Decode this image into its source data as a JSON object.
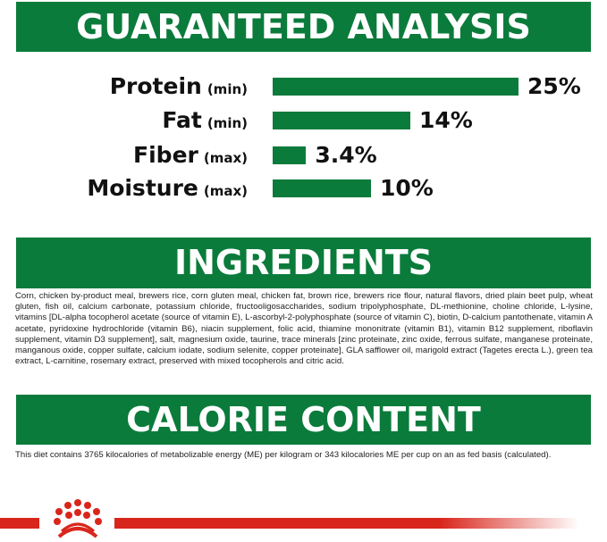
{
  "sections": {
    "analysis_title": "GUARANTEED ANALYSIS",
    "ingredients_title": "INGREDIENTS",
    "calorie_title": "CALORIE CONTENT"
  },
  "analysis": [
    {
      "name": "Protein",
      "qualifier": "(min)",
      "value": 25,
      "label": "25%"
    },
    {
      "name": "Fat",
      "qualifier": "(min)",
      "value": 14,
      "label": "14%"
    },
    {
      "name": "Fiber",
      "qualifier": "(max)",
      "value": 3.4,
      "label": "3.4%"
    },
    {
      "name": "Moisture",
      "qualifier": "(max)",
      "value": 10,
      "label": "10%"
    }
  ],
  "chart_data": {
    "type": "bar",
    "orientation": "horizontal",
    "categories": [
      "Protein (min)",
      "Fat (min)",
      "Fiber (max)",
      "Moisture (max)"
    ],
    "values": [
      25,
      14,
      3.4,
      10
    ],
    "unit": "%"
  },
  "ingredients_text": "Corn, chicken by-product meal, brewers rice, corn gluten meal, chicken fat, brown rice, brewers rice flour, natural flavors, dried plain beet pulp, wheat gluten, fish oil, calcium carbonate, potassium chloride, fructooligosaccharides, sodium tripolyphosphate, DL-methionine, choline chloride, L-lysine, vitamins [DL-alpha tocopherol acetate (source of vitamin E), L-ascorbyl-2-polyphosphate (source of vitamin C), biotin, D-calcium pantothenate, vitamin A acetate, pyridoxine hydrochloride (vitamin B6), niacin supplement, folic acid, thiamine mononitrate (vitamin B1), vitamin B12 supplement, riboflavin supplement, vitamin D3 supplement], salt, magnesium oxide, taurine, trace minerals [zinc proteinate, zinc oxide, ferrous sulfate, manganese proteinate, manganous oxide, copper sulfate, calcium iodate, sodium selenite, copper proteinate], GLA safflower oil, marigold extract (Tagetes erecta L.), green tea extract, L-carnitine, rosemary extract, preserved with mixed tocopherols and citric acid.",
  "calorie_text": "This diet contains 3765 kilocalories of metabolizable energy (ME) per kilogram or 343 kilocalories ME per cup on an as fed basis (calculated).",
  "colors": {
    "green": "#0b7b3b",
    "red": "#d9261c"
  },
  "logo": {
    "icon": "crown-icon"
  }
}
